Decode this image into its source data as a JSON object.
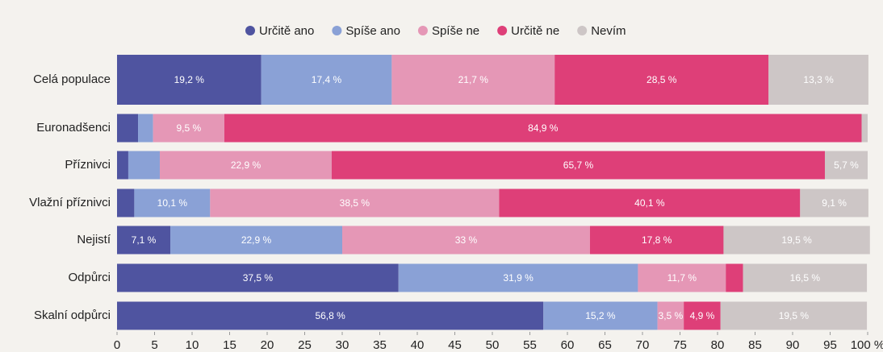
{
  "chart_data": {
    "type": "stacked-bar-horizontal",
    "categories": [
      "Celá populace",
      "Euronadšenci",
      "Příznivci",
      "Vlažní příznivci",
      "Nejistí",
      "Odpůrci",
      "Skalní odpůrci"
    ],
    "series": [
      {
        "name": "Určitě ano",
        "color": "#4f54a0",
        "values": [
          19.2,
          2.8,
          1.5,
          2.3,
          7.1,
          37.5,
          56.8
        ],
        "value_labels": [
          "19,2 %",
          null,
          null,
          null,
          "7,1 %",
          "37,5 %",
          "56,8 %"
        ]
      },
      {
        "name": "Spíše ano",
        "color": "#8aa1d6",
        "values": [
          17.4,
          2.0,
          4.2,
          10.1,
          22.9,
          31.9,
          15.2
        ],
        "value_labels": [
          "17,4 %",
          null,
          null,
          "10,1 %",
          "22,9 %",
          "31,9 %",
          "15,2 %"
        ]
      },
      {
        "name": "Spíše ne",
        "color": "#e597b6",
        "values": [
          21.7,
          9.5,
          22.9,
          38.5,
          33,
          11.7,
          3.5
        ],
        "value_labels": [
          "21,7 %",
          "9,5 %",
          "22,9 %",
          "38,5 %",
          "33 %",
          "11,7 %",
          "3,5 %"
        ]
      },
      {
        "name": "Určitě ne",
        "color": "#de3f78",
        "values": [
          28.5,
          84.9,
          65.7,
          40.1,
          17.8,
          2.3,
          4.9
        ],
        "value_labels": [
          "28,5 %",
          "84,9 %",
          "65,7 %",
          "40,1 %",
          "17,8 %",
          null,
          "4,9 %"
        ]
      },
      {
        "name": "Nevím",
        "color": "#cdc6c6",
        "values": [
          13.3,
          0.8,
          5.7,
          9.1,
          19.5,
          16.5,
          19.5
        ],
        "value_labels": [
          "13,3 %",
          null,
          "5,7 %",
          "9,1 %",
          "19,5 %",
          "16,5 %",
          "19,5 %"
        ]
      }
    ],
    "xlim": [
      0,
      100
    ],
    "xticks": [
      0,
      5,
      10,
      15,
      20,
      25,
      30,
      35,
      40,
      45,
      50,
      55,
      60,
      65,
      70,
      75,
      80,
      85,
      90,
      95,
      {
        "value": 100,
        "label": "100 %"
      }
    ],
    "legend": "top"
  }
}
